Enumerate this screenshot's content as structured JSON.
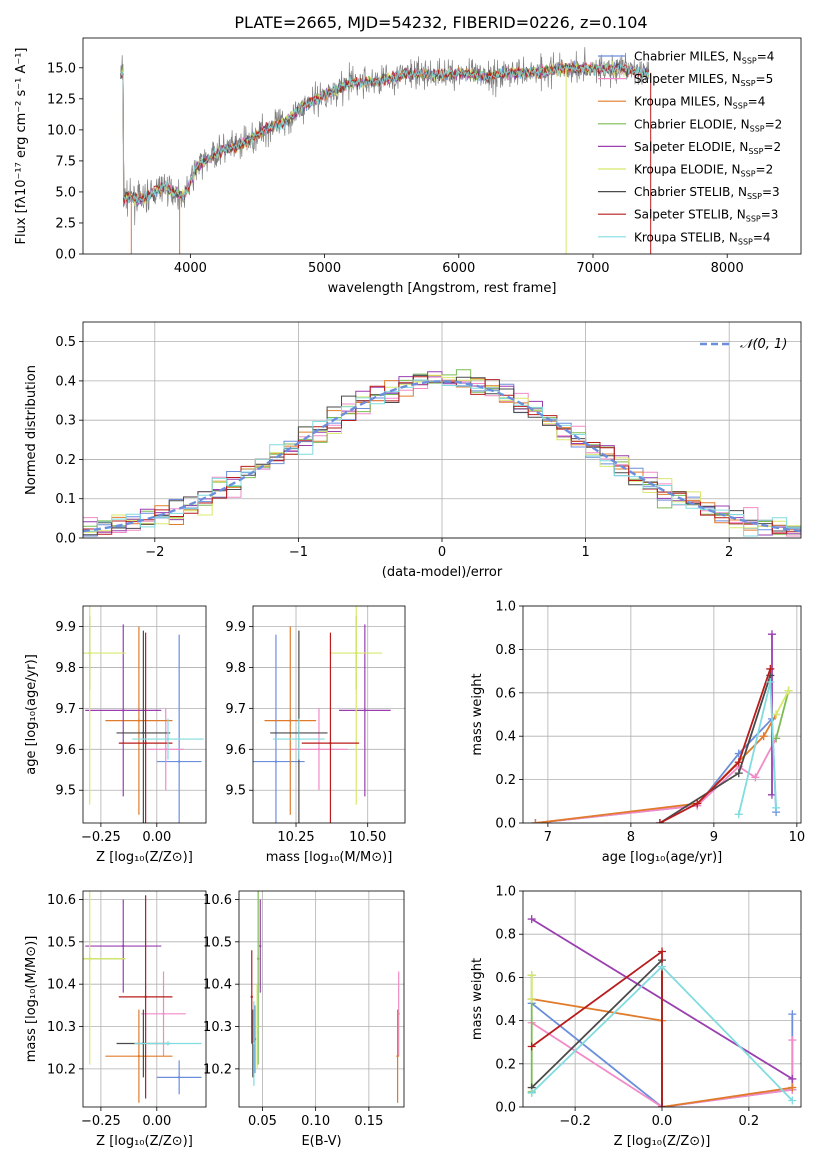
{
  "figure_title": "PLATE=2665, MJD=54232, FIBERID=0226, z=0.104",
  "colors": {
    "Chabrier MILES": "#6b8fdc",
    "Salpeter MILES": "#f28ac8",
    "Kroupa MILES": "#e07b2c",
    "Chabrier ELODIE": "#7cbc54",
    "Salpeter ELODIE": "#9a3fb0",
    "Kroupa ELODIE": "#d8e86c",
    "Chabrier STELIB": "#4a4a4a",
    "Salpeter STELIB": "#b81c1c",
    "Kroupa STELIB": "#80dce0",
    "data": "#7f7f7f"
  },
  "chart_data": [
    {
      "id": "spectrum",
      "type": "line",
      "title": "PLATE=2665, MJD=54232, FIBERID=0226, z=0.104",
      "xlabel": "wavelength [Angstrom, rest frame]",
      "ylabel": "Flux [fλ10⁻¹⁷ erg cm⁻² s⁻¹ A⁻¹]",
      "xlim": [
        3200,
        8550
      ],
      "ylim": [
        0,
        17.4
      ],
      "xticks": [
        4000,
        5000,
        6000,
        7000,
        8000
      ],
      "yticks": [
        0.0,
        2.5,
        5.0,
        7.5,
        10.0,
        12.5,
        15.0
      ],
      "legend_position": "right",
      "legend": [
        {
          "name": "Chabrier MILES",
          "nssp": "4"
        },
        {
          "name": "Salpeter MILES",
          "nssp": "5"
        },
        {
          "name": "Kroupa MILES",
          "nssp": "4"
        },
        {
          "name": "Chabrier ELODIE",
          "nssp": "2"
        },
        {
          "name": "Salpeter ELODIE",
          "nssp": "2"
        },
        {
          "name": "Kroupa ELODIE",
          "nssp": "2"
        },
        {
          "name": "Chabrier STELIB",
          "nssp": "3"
        },
        {
          "name": "Salpeter STELIB",
          "nssp": "3"
        },
        {
          "name": "Kroupa STELIB",
          "nssp": "4"
        }
      ],
      "continuum": [
        [
          3500,
          4.6
        ],
        [
          3650,
          4.4
        ],
        [
          3800,
          5.5
        ],
        [
          3950,
          4.6
        ],
        [
          4050,
          7.0
        ],
        [
          4200,
          8.2
        ],
        [
          4400,
          8.9
        ],
        [
          4550,
          10.0
        ],
        [
          4700,
          10.6
        ],
        [
          4850,
          12.0
        ],
        [
          5000,
          12.8
        ],
        [
          5200,
          13.8
        ],
        [
          5400,
          13.9
        ],
        [
          5600,
          14.5
        ],
        [
          5800,
          14.4
        ],
        [
          6000,
          14.6
        ],
        [
          6200,
          14.3
        ],
        [
          6400,
          14.6
        ],
        [
          6600,
          14.7
        ],
        [
          6800,
          15.0
        ],
        [
          7000,
          14.9
        ],
        [
          7200,
          14.9
        ],
        [
          7400,
          14.6
        ]
      ],
      "drops": [
        [
          3560,
          0
        ],
        [
          3920,
          0
        ],
        [
          6800,
          0
        ],
        [
          7430,
          0
        ]
      ]
    },
    {
      "id": "residuals",
      "type": "histogram",
      "xlabel": "(data-model)/error",
      "ylabel": "Normed distribution",
      "xlim": [
        -2.5,
        2.5
      ],
      "ylim": [
        0,
        0.55
      ],
      "xticks": [
        -2,
        -1,
        0,
        1,
        2
      ],
      "yticks": [
        0.0,
        0.1,
        0.2,
        0.3,
        0.4,
        0.5
      ],
      "reference_label": "𝒩(0, 1)",
      "legend_position": "top-right",
      "bin_width": 0.1
    },
    {
      "id": "age_vs_Z",
      "type": "scatter",
      "xlabel": "Z [log₁₀(Z/Z⊙)]",
      "ylabel": "age  [log₁₀(age/yr)]",
      "xlim": [
        -0.33,
        0.22
      ],
      "ylim": [
        9.42,
        9.95
      ],
      "xticks": [
        -0.25,
        0.0
      ],
      "yticks": [
        9.5,
        9.6,
        9.7,
        9.8,
        9.9
      ],
      "points": [
        {
          "name": "Chabrier MILES",
          "x": 0.1,
          "y": 9.57,
          "xerr": 0.1,
          "yerr": 0.31
        },
        {
          "name": "Salpeter MILES",
          "x": 0.04,
          "y": 9.6,
          "xerr": 0.08,
          "yerr": 0.1
        },
        {
          "name": "Kroupa MILES",
          "x": -0.08,
          "y": 9.67,
          "xerr": 0.15,
          "yerr": 0.23
        },
        {
          "name": "Chabrier ELODIE",
          "x": -0.3,
          "y": 9.835,
          "xerr": 0.005,
          "yerr": 0.09
        },
        {
          "name": "Salpeter ELODIE",
          "x": -0.15,
          "y": 9.695,
          "xerr": 0.17,
          "yerr": 0.21
        },
        {
          "name": "Kroupa ELODIE",
          "x": -0.3,
          "y": 9.835,
          "xerr": 0.16,
          "yerr": 0.37
        },
        {
          "name": "Chabrier STELIB",
          "x": -0.06,
          "y": 9.64,
          "xerr": 0.12,
          "yerr": 0.25
        },
        {
          "name": "Salpeter STELIB",
          "x": -0.05,
          "y": 9.615,
          "xerr": 0.12,
          "yerr": 0.27
        },
        {
          "name": "Kroupa STELIB",
          "x": 0.05,
          "y": 9.625,
          "xerr": 0.16,
          "yerr": 0.05
        }
      ]
    },
    {
      "id": "age_vs_mass",
      "type": "scatter",
      "xlabel": "mass [log₁₀(M/M⊙)]",
      "ylabel": "",
      "xlim": [
        10.1,
        10.63
      ],
      "ylim": [
        9.42,
        9.95
      ],
      "xticks": [
        10.25,
        10.5
      ],
      "yticks": [
        9.5,
        9.6,
        9.7,
        9.8,
        9.9
      ],
      "points": [
        {
          "name": "Chabrier MILES",
          "x": 10.18,
          "y": 9.57,
          "xerr": 0.1,
          "yerr": 0.31
        },
        {
          "name": "Salpeter MILES",
          "x": 10.33,
          "y": 9.6,
          "xerr": 0.1,
          "yerr": 0.1
        },
        {
          "name": "Kroupa MILES",
          "x": 10.23,
          "y": 9.67,
          "xerr": 0.09,
          "yerr": 0.23
        },
        {
          "name": "Chabrier ELODIE",
          "x": 10.46,
          "y": 9.835,
          "xerr": 0.005,
          "yerr": 0.09
        },
        {
          "name": "Salpeter ELODIE",
          "x": 10.49,
          "y": 9.695,
          "xerr": 0.09,
          "yerr": 0.21
        },
        {
          "name": "Kroupa ELODIE",
          "x": 10.46,
          "y": 9.835,
          "xerr": 0.09,
          "yerr": 0.37
        },
        {
          "name": "Chabrier STELIB",
          "x": 10.26,
          "y": 9.64,
          "xerr": 0.1,
          "yerr": 0.25
        },
        {
          "name": "Salpeter STELIB",
          "x": 10.37,
          "y": 9.615,
          "xerr": 0.1,
          "yerr": 0.27
        },
        {
          "name": "Kroupa STELIB",
          "x": 10.26,
          "y": 9.625,
          "xerr": 0.09,
          "yerr": 0.05
        }
      ]
    },
    {
      "id": "mass_weight_vs_age",
      "type": "line",
      "xlabel": "age  [log₁₀(age/yr)]",
      "ylabel": "mass weight",
      "xlim": [
        6.7,
        10.05
      ],
      "ylim": [
        0,
        1
      ],
      "xticks": [
        7,
        8,
        9,
        10
      ],
      "yticks": [
        0.0,
        0.2,
        0.4,
        0.6,
        0.8,
        1.0
      ],
      "series": [
        {
          "name": "Chabrier MILES",
          "x": [
            6.85,
            8.8,
            9.3,
            9.7,
            9.75
          ],
          "y": [
            0.0,
            0.08,
            0.32,
            0.48,
            0.05
          ]
        },
        {
          "name": "Salpeter MILES",
          "x": [
            6.85,
            8.8,
            9.3,
            9.5,
            9.75
          ],
          "y": [
            0.0,
            0.08,
            0.26,
            0.21,
            0.39
          ]
        },
        {
          "name": "Kroupa MILES",
          "x": [
            6.85,
            8.8,
            9.6,
            9.75
          ],
          "y": [
            0.0,
            0.09,
            0.4,
            0.5
          ]
        },
        {
          "name": "Chabrier ELODIE",
          "x": [
            9.75,
            9.9
          ],
          "y": [
            0.39,
            0.61
          ]
        },
        {
          "name": "Salpeter ELODIE",
          "x": [
            9.7,
            9.7
          ],
          "y": [
            0.13,
            0.87
          ]
        },
        {
          "name": "Kroupa ELODIE",
          "x": [
            9.75,
            9.9
          ],
          "y": [
            0.5,
            0.61
          ]
        },
        {
          "name": "Chabrier STELIB",
          "x": [
            8.35,
            9.3,
            9.68
          ],
          "y": [
            0.0,
            0.23,
            0.68
          ]
        },
        {
          "name": "Salpeter STELIB",
          "x": [
            8.35,
            8.8,
            9.3,
            9.68
          ],
          "y": [
            0.0,
            0.09,
            0.28,
            0.71
          ]
        },
        {
          "name": "Kroupa STELIB",
          "x": [
            9.3,
            9.68,
            9.75
          ],
          "y": [
            0.04,
            0.65,
            0.07
          ]
        }
      ]
    },
    {
      "id": "mass_vs_Z",
      "type": "scatter",
      "xlabel": "Z [log₁₀(Z/Z⊙)]",
      "ylabel": "mass [log₁₀(M/M⊙)]",
      "xlim": [
        -0.33,
        0.22
      ],
      "ylim": [
        10.11,
        10.62
      ],
      "xticks": [
        -0.25,
        0.0
      ],
      "yticks": [
        10.2,
        10.3,
        10.4,
        10.5,
        10.6
      ],
      "points": [
        {
          "name": "Chabrier MILES",
          "x": 0.1,
          "y": 10.18,
          "xerr": 0.1,
          "yerr": 0.04
        },
        {
          "name": "Salpeter MILES",
          "x": 0.03,
          "y": 10.33,
          "xerr": 0.1,
          "yerr": 0.1
        },
        {
          "name": "Kroupa MILES",
          "x": -0.08,
          "y": 10.23,
          "xerr": 0.15,
          "yerr": 0.11
        },
        {
          "name": "Chabrier ELODIE",
          "x": -0.3,
          "y": 10.46,
          "xerr": 0.16,
          "yerr": 0.005
        },
        {
          "name": "Salpeter ELODIE",
          "x": -0.15,
          "y": 10.49,
          "xerr": 0.17,
          "yerr": 0.11
        },
        {
          "name": "Kroupa ELODIE",
          "x": -0.3,
          "y": 10.46,
          "xerr": 0.16,
          "yerr": 0.25
        },
        {
          "name": "Chabrier STELIB",
          "x": -0.06,
          "y": 10.26,
          "xerr": 0.12,
          "yerr": 0.08
        },
        {
          "name": "Salpeter STELIB",
          "x": -0.05,
          "y": 10.37,
          "xerr": 0.12,
          "yerr": 0.24
        },
        {
          "name": "Kroupa STELIB",
          "x": 0.05,
          "y": 10.26,
          "xerr": 0.15,
          "yerr": 0.005
        }
      ]
    },
    {
      "id": "mass_vs_EBV",
      "type": "scatter",
      "xlabel": "E(B-V)",
      "ylabel": "",
      "xlim": [
        0.028,
        0.183
      ],
      "ylim": [
        10.11,
        10.62
      ],
      "xticks": [
        0.05,
        0.1,
        0.15
      ],
      "yticks": [
        10.2,
        10.3,
        10.4,
        10.5,
        10.6
      ],
      "points": [
        {
          "name": "Chabrier MILES",
          "x": 0.043,
          "y": 10.27,
          "xerr": 0.0,
          "yerr": 0.08
        },
        {
          "name": "Salpeter MILES",
          "x": 0.178,
          "y": 10.33,
          "xerr": 0.0,
          "yerr": 0.1
        },
        {
          "name": "Kroupa MILES",
          "x": 0.177,
          "y": 10.23,
          "xerr": 0.0,
          "yerr": 0.11
        },
        {
          "name": "Chabrier ELODIE",
          "x": 0.046,
          "y": 10.46,
          "xerr": 0.0,
          "yerr": 0.25
        },
        {
          "name": "Salpeter ELODIE",
          "x": 0.048,
          "y": 10.49,
          "xerr": 0.0,
          "yerr": 0.11
        },
        {
          "name": "Kroupa ELODIE",
          "x": 0.045,
          "y": 10.3,
          "xerr": 0.0,
          "yerr": 0.1
        },
        {
          "name": "Chabrier STELIB",
          "x": 0.041,
          "y": 10.26,
          "xerr": 0.0,
          "yerr": 0.08
        },
        {
          "name": "Salpeter STELIB",
          "x": 0.04,
          "y": 10.37,
          "xerr": 0.0,
          "yerr": 0.11
        },
        {
          "name": "Kroupa STELIB",
          "x": 0.042,
          "y": 10.26,
          "xerr": 0.0,
          "yerr": 0.1
        }
      ]
    },
    {
      "id": "mass_weight_vs_Z",
      "type": "line",
      "xlabel": "Z [log₁₀(Z/Z⊙)]",
      "ylabel": "mass weight",
      "xlim": [
        -0.32,
        0.32
      ],
      "ylim": [
        0,
        1
      ],
      "xticks": [
        -0.2,
        0.0,
        0.2
      ],
      "yticks": [
        0.0,
        0.2,
        0.4,
        0.6,
        0.8,
        1.0
      ],
      "series": [
        {
          "name": "Chabrier MILES",
          "x": [
            -0.3,
            0.0,
            0.3,
            0.3
          ],
          "y": [
            0.48,
            0.0,
            0.08,
            0.43
          ]
        },
        {
          "name": "Salpeter MILES",
          "x": [
            -0.3,
            0.0,
            0.3,
            0.3
          ],
          "y": [
            0.39,
            0.0,
            0.08,
            0.31
          ]
        },
        {
          "name": "Kroupa MILES",
          "x": [
            -0.3,
            0.0,
            0.0,
            0.3
          ],
          "y": [
            0.5,
            0.4,
            0.0,
            0.09
          ]
        },
        {
          "name": "Chabrier ELODIE",
          "x": [
            -0.3,
            -0.3
          ],
          "y": [
            0.07,
            0.61
          ]
        },
        {
          "name": "Salpeter ELODIE",
          "x": [
            -0.3,
            0.3
          ],
          "y": [
            0.87,
            0.13
          ]
        },
        {
          "name": "Kroupa ELODIE",
          "x": [
            -0.3,
            -0.3
          ],
          "y": [
            0.5,
            0.61
          ]
        },
        {
          "name": "Chabrier STELIB",
          "x": [
            -0.3,
            0.0,
            0.0
          ],
          "y": [
            0.09,
            0.68,
            0.0
          ]
        },
        {
          "name": "Salpeter STELIB",
          "x": [
            -0.3,
            0.0,
            0.0
          ],
          "y": [
            0.28,
            0.72,
            0.0
          ]
        },
        {
          "name": "Kroupa STELIB",
          "x": [
            -0.3,
            0.0,
            0.3
          ],
          "y": [
            0.065,
            0.65,
            0.03
          ]
        }
      ]
    }
  ]
}
